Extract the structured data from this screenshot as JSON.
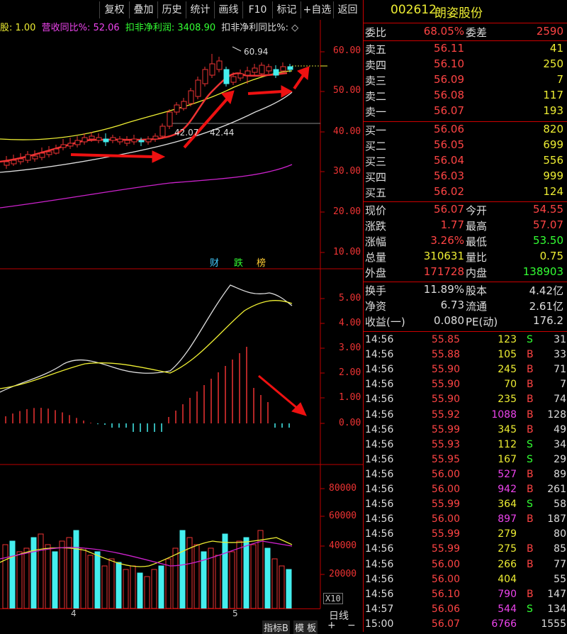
{
  "toolbar": {
    "buttons": [
      "复权",
      "叠加",
      "历史",
      "统计",
      "画线",
      "F10",
      "标记",
      "+自选",
      "返回"
    ]
  },
  "infobar": {
    "item1": "股: 1.00",
    "item2": "营收同比%: 52.06",
    "item3": "扣非净利润: 3408.90",
    "item4": "扣非净利同比%: ◇"
  },
  "price_axis": [
    "60.00",
    "50.00",
    "40.00",
    "30.00",
    "20.00",
    "10.00"
  ],
  "price_annotations": {
    "high": "60.94",
    "low": "42.07",
    "line_value": "42.44"
  },
  "event_labels": [
    "财",
    "跌",
    "榜"
  ],
  "macd_axis": [
    "5.00",
    "4.00",
    "3.00",
    "2.00",
    "1.00",
    "0.00"
  ],
  "volume_axis": [
    "80000",
    "60000",
    "40000",
    "20000"
  ],
  "volume_unit": "X10",
  "date_labels": [
    "4",
    "5"
  ],
  "bottom": {
    "tab1": "日线",
    "tab2": "指标B",
    "tab3": "模 板",
    "plus": "+",
    "minus": "−"
  },
  "stock": {
    "code": "002612",
    "name": "朗姿股份"
  },
  "weibi": {
    "label": "委比",
    "value": "68.05%",
    "label2": "委差",
    "value2": "2590"
  },
  "sells": [
    {
      "label": "卖五",
      "price": "56.11",
      "vol": "41"
    },
    {
      "label": "卖四",
      "price": "56.10",
      "vol": "250"
    },
    {
      "label": "卖三",
      "price": "56.09",
      "vol": "7"
    },
    {
      "label": "卖二",
      "price": "56.08",
      "vol": "117"
    },
    {
      "label": "卖一",
      "price": "56.07",
      "vol": "193"
    }
  ],
  "buys": [
    {
      "label": "买一",
      "price": "56.06",
      "vol": "820"
    },
    {
      "label": "买二",
      "price": "56.05",
      "vol": "699"
    },
    {
      "label": "买三",
      "price": "56.04",
      "vol": "556"
    },
    {
      "label": "买四",
      "price": "56.03",
      "vol": "999"
    },
    {
      "label": "买五",
      "price": "56.02",
      "vol": "124"
    }
  ],
  "quote": [
    {
      "l1": "现价",
      "v1": "56.07",
      "l2": "今开",
      "v2": "54.55"
    },
    {
      "l1": "涨跌",
      "v1": "1.77",
      "l2": "最高",
      "v2": "57.07"
    },
    {
      "l1": "涨幅",
      "v1": "3.26%",
      "l2": "最低",
      "v2": "53.50"
    },
    {
      "l1": "总量",
      "v1": "310631",
      "l2": "量比",
      "v2": "0.75"
    },
    {
      "l1": "外盘",
      "v1": "171728",
      "l2": "内盘",
      "v2": "138903"
    }
  ],
  "fund": [
    {
      "l1": "换手",
      "v1": "11.89%",
      "l2": "股本",
      "v2": "4.42亿"
    },
    {
      "l1": "净资",
      "v1": "6.73",
      "l2": "流通",
      "v2": "2.61亿"
    },
    {
      "l1": "收益(一)",
      "v1": "0.080",
      "l2": "PE(动)",
      "v2": "176.2"
    }
  ],
  "ticks": [
    {
      "t": "14:56",
      "p": "55.85",
      "v": "123",
      "s": "S",
      "n": "31",
      "vc": "yellow"
    },
    {
      "t": "14:56",
      "p": "55.88",
      "v": "105",
      "s": "B",
      "n": "33",
      "vc": "yellow"
    },
    {
      "t": "14:56",
      "p": "55.90",
      "v": "245",
      "s": "B",
      "n": "71",
      "vc": "yellow"
    },
    {
      "t": "14:56",
      "p": "55.90",
      "v": "70",
      "s": "B",
      "n": "7",
      "vc": "yellow"
    },
    {
      "t": "14:56",
      "p": "55.90",
      "v": "235",
      "s": "B",
      "n": "74",
      "vc": "yellow"
    },
    {
      "t": "14:56",
      "p": "55.92",
      "v": "1088",
      "s": "B",
      "n": "128",
      "vc": "purple"
    },
    {
      "t": "14:56",
      "p": "55.99",
      "v": "345",
      "s": "B",
      "n": "49",
      "vc": "yellow"
    },
    {
      "t": "14:56",
      "p": "55.93",
      "v": "112",
      "s": "S",
      "n": "34",
      "vc": "yellow"
    },
    {
      "t": "14:56",
      "p": "55.95",
      "v": "167",
      "s": "S",
      "n": "29",
      "vc": "yellow"
    },
    {
      "t": "14:56",
      "p": "56.00",
      "v": "527",
      "s": "B",
      "n": "89",
      "vc": "purple"
    },
    {
      "t": "14:56",
      "p": "56.00",
      "v": "942",
      "s": "B",
      "n": "261",
      "vc": "purple"
    },
    {
      "t": "14:56",
      "p": "55.99",
      "v": "364",
      "s": "S",
      "n": "58",
      "vc": "yellow"
    },
    {
      "t": "14:56",
      "p": "56.00",
      "v": "897",
      "s": "B",
      "n": "187",
      "vc": "purple"
    },
    {
      "t": "14:56",
      "p": "55.99",
      "v": "279",
      "s": "",
      "n": "80",
      "vc": "yellow"
    },
    {
      "t": "14:56",
      "p": "55.99",
      "v": "275",
      "s": "B",
      "n": "85",
      "vc": "yellow"
    },
    {
      "t": "14:56",
      "p": "56.00",
      "v": "266",
      "s": "B",
      "n": "77",
      "vc": "yellow"
    },
    {
      "t": "14:56",
      "p": "56.00",
      "v": "404",
      "s": "",
      "n": "55",
      "vc": "yellow"
    },
    {
      "t": "14:56",
      "p": "56.10",
      "v": "790",
      "s": "B",
      "n": "147",
      "vc": "purple"
    },
    {
      "t": "14:57",
      "p": "56.06",
      "v": "544",
      "s": "S",
      "n": "134",
      "vc": "purple"
    },
    {
      "t": "15:00",
      "p": "56.07",
      "v": "6766",
      "s": "",
      "n": "1555",
      "vc": "purple"
    }
  ]
}
